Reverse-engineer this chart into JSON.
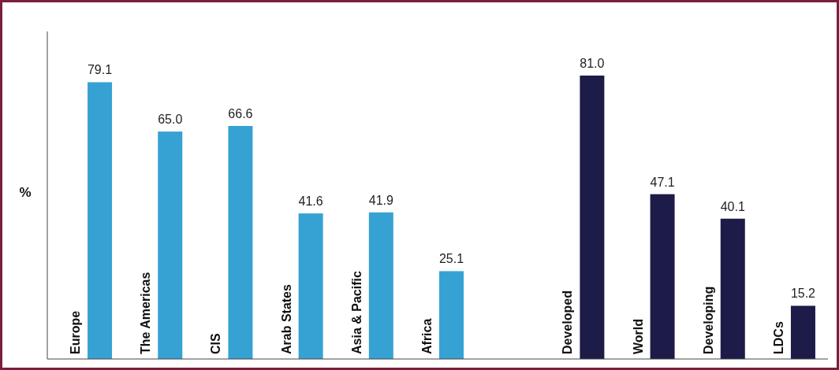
{
  "chart_data": {
    "type": "bar",
    "ylabel": "%",
    "categories": [
      "Europe",
      "The Americas",
      "CIS",
      "Arab States",
      "Asia & Pacific",
      "Africa",
      null,
      "Developed",
      "World",
      "Developing",
      "LDCs"
    ],
    "values": [
      79.1,
      65.0,
      66.6,
      41.6,
      41.9,
      25.1,
      null,
      81.0,
      47.1,
      40.1,
      15.2
    ],
    "colors": [
      "#36a2d3",
      "#36a2d3",
      "#36a2d3",
      "#36a2d3",
      "#36a2d3",
      "#36a2d3",
      "#36a2d3",
      "#1d1b48",
      "#1d1b48",
      "#1d1b48",
      "#1d1b48"
    ],
    "value_labels": [
      "79.1",
      "65.0",
      "66.6",
      "41.6",
      "41.9",
      "25.1",
      null,
      "81.0",
      "47.1",
      "40.1",
      "15.2"
    ],
    "data_labels": false
  }
}
